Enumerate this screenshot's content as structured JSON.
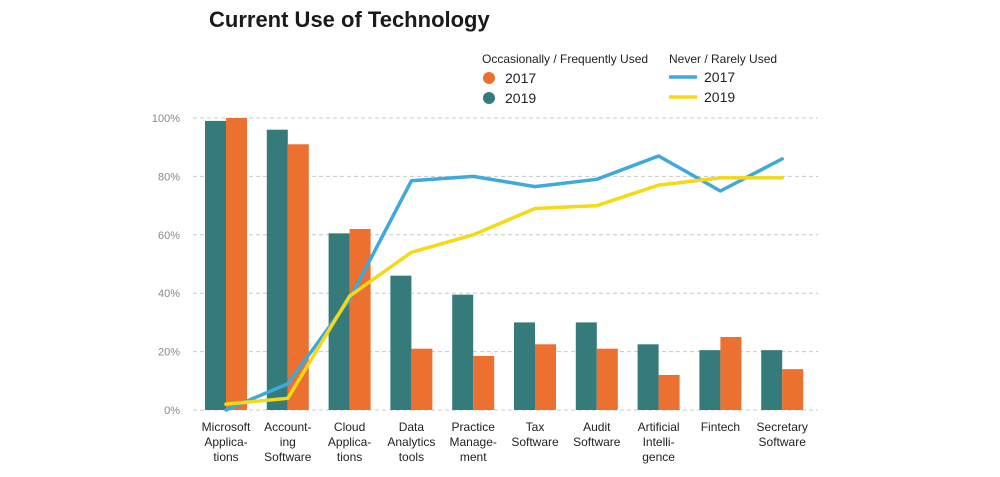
{
  "chart_data": {
    "type": "bar",
    "title": "Current Use of Technology",
    "categories": [
      [
        "Microsoft",
        "Applica-",
        "tions"
      ],
      [
        "Account-",
        "ing",
        "Software"
      ],
      [
        "Cloud",
        "Applica-",
        "tions"
      ],
      [
        "Data",
        "Analytics",
        "tools"
      ],
      [
        "Practice",
        "Manage-",
        "ment"
      ],
      [
        "Tax",
        "Software"
      ],
      [
        "Audit",
        "Software"
      ],
      [
        "Artificial",
        "Intelli-",
        "gence"
      ],
      [
        "Fintech"
      ],
      [
        "Secretary",
        "Software"
      ]
    ],
    "ylim": [
      0,
      100
    ],
    "yticks": [
      0,
      20,
      40,
      60,
      80,
      100
    ],
    "ytick_labels": [
      "0%",
      "20%",
      "40%",
      "60%",
      "80%",
      "100%"
    ],
    "grid": true,
    "legend_groups": [
      {
        "heading": "Occasionally / Frequently Used",
        "marker": "dot",
        "entries": [
          "2017",
          "2019"
        ]
      },
      {
        "heading": "Never / Rarely Used",
        "marker": "line",
        "entries": [
          "2017",
          "2019"
        ]
      }
    ],
    "series": [
      {
        "group": "Occasionally / Frequently Used",
        "name": "2019",
        "kind": "bar",
        "color": "#367b7b",
        "values": [
          99,
          96,
          60.5,
          46,
          39.5,
          30,
          30,
          22.5,
          20.5,
          20.5
        ]
      },
      {
        "group": "Occasionally / Frequently Used",
        "name": "2017",
        "kind": "bar",
        "color": "#ec7030",
        "values": [
          100,
          91,
          62,
          21,
          18.5,
          22.5,
          21,
          12,
          25,
          14
        ]
      },
      {
        "group": "Never / Rarely Used",
        "name": "2017",
        "kind": "line",
        "color": "#3fa9d9",
        "values": [
          0,
          9,
          38,
          78.5,
          80,
          76.5,
          79,
          87,
          75,
          86
        ]
      },
      {
        "group": "Never / Rarely Used",
        "name": "2019",
        "kind": "line",
        "color": "#f6d814",
        "values": [
          2,
          4,
          39,
          54,
          60,
          69,
          70,
          77,
          79.5,
          79.5
        ]
      }
    ]
  }
}
